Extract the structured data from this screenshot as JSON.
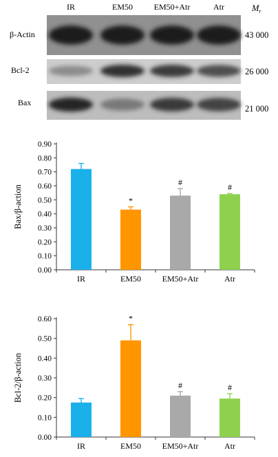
{
  "blot": {
    "lane_labels": [
      "IR",
      "EM50",
      "EM50+Atr",
      "Atr"
    ],
    "mr_label": "M",
    "mr_sub": "r",
    "rows": [
      {
        "label": "β-Actin",
        "mw": "43 000",
        "intensity": [
          0.95,
          0.95,
          0.95,
          0.95
        ]
      },
      {
        "label": "Bcl-2",
        "mw": "26 000",
        "intensity": [
          0.35,
          0.85,
          0.8,
          0.7
        ]
      },
      {
        "label": "Bax",
        "mw": "21 000",
        "intensity": [
          0.9,
          0.45,
          0.8,
          0.75
        ]
      }
    ]
  },
  "chart_data": [
    {
      "type": "bar",
      "categories": [
        "IR",
        "EM50",
        "EM50+Atr",
        "Atr"
      ],
      "values": [
        0.72,
        0.43,
        0.53,
        0.54
      ],
      "errors": [
        0.04,
        0.02,
        0.05,
        0.005
      ],
      "annotations": [
        "",
        "*",
        "#",
        "#"
      ],
      "colors": [
        "#1ab0ea",
        "#ff9600",
        "#a9a9a9",
        "#8fd14f"
      ],
      "ylabel": "Bax/β-action",
      "ylim": [
        0,
        0.9
      ],
      "yticks": [
        "0.00",
        "0.10",
        "0.20",
        "0.30",
        "0.40",
        "0.50",
        "0.60",
        "0.70",
        "0.80",
        "0.90"
      ],
      "grid": false
    },
    {
      "type": "bar",
      "categories": [
        "IR",
        "EM50",
        "EM50+Atr",
        "Atr"
      ],
      "values": [
        0.175,
        0.49,
        0.21,
        0.195
      ],
      "errors": [
        0.02,
        0.08,
        0.02,
        0.025
      ],
      "annotations": [
        "",
        "*",
        "#",
        "#"
      ],
      "colors": [
        "#1ab0ea",
        "#ff9600",
        "#a9a9a9",
        "#8fd14f"
      ],
      "ylabel": "Bcl-2/β-action",
      "ylim": [
        0,
        0.6
      ],
      "yticks": [
        "0.00",
        "0.10",
        "0.20",
        "0.30",
        "0.40",
        "0.50",
        "0.60"
      ],
      "grid": false
    }
  ]
}
